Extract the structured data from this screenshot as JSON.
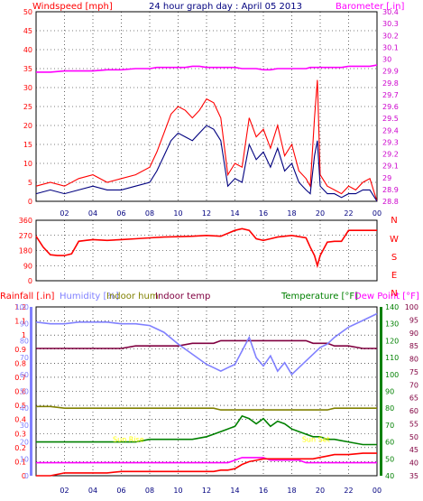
{
  "header": {
    "windspeed_label": "Windspeed [mph]",
    "title": "24 hour graph day : April 05 2013",
    "barometer_label": "Barometer [.in]"
  },
  "colors": {
    "red": "#ff0000",
    "navy": "#00007f",
    "magenta": "#ff00ff",
    "purple": "#cc00cc",
    "humidity": "#8080ff",
    "olive": "#808000",
    "maroon": "#800040",
    "green": "#008000",
    "yellow": "#ffff00"
  },
  "time_ticks": [
    "02",
    "04",
    "06",
    "08",
    "10",
    "12",
    "14",
    "16",
    "18",
    "20",
    "22",
    "00"
  ],
  "panel1": {
    "left_ticks": [
      "0",
      "5",
      "10",
      "15",
      "20",
      "25",
      "30",
      "35",
      "40",
      "45",
      "50"
    ],
    "right_ticks": [
      "28.8",
      "28.9",
      "29",
      "29.1",
      "29.2",
      "29.3",
      "29.4",
      "29.5",
      "29.6",
      "29.7",
      "29.8",
      "29.9",
      "30",
      "30.1",
      "30.2",
      "30.3",
      "30.4"
    ]
  },
  "panel2": {
    "left_ticks": [
      "0",
      "90",
      "180",
      "270",
      "360"
    ],
    "compass": [
      "N",
      "W",
      "S",
      "E",
      "N"
    ]
  },
  "panel3": {
    "rainfall_label": "Rainfall [.in]",
    "humidity_label": "Humidity [%]",
    "indoor_hum_label": "Indoor hum",
    "indoor_temp_label": "Indoor temp",
    "temperature_label": "Temperature [°F]",
    "dewpoint_label": "Dew Point [°F]",
    "rain_ticks": [
      "0",
      "0.1",
      "0.2",
      "0.3",
      "0.4",
      "0.5",
      "0.6",
      "0.7",
      "0.8",
      "0.9",
      "1",
      "1.1",
      "1.2"
    ],
    "hum_ticks": [
      "0",
      "10",
      "20",
      "30",
      "40",
      "50",
      "60",
      "70",
      "80",
      "90",
      "100"
    ],
    "temp_ticks": [
      "40",
      "50",
      "60",
      "70",
      "80",
      "90",
      "100",
      "110",
      "120",
      "130",
      "140"
    ],
    "dew_ticks": [
      "35",
      "40",
      "45",
      "50",
      "55",
      "60",
      "65",
      "70",
      "75",
      "80",
      "85",
      "90",
      "95",
      "100"
    ],
    "annotations": [
      {
        "text": "Sun Rise",
        "hour": 6.5,
        "rain": 0.24
      },
      {
        "text": "Sun Set",
        "hour": 19.7,
        "rain": 0.24
      }
    ]
  },
  "chart_data": [
    {
      "type": "line",
      "ylabel": "Windspeed [mph]",
      "y2label": "Barometer [.in]",
      "ylim": [
        0,
        50
      ],
      "y2lim": [
        28.8,
        30.4
      ],
      "x_hours": [
        0,
        1,
        2,
        3,
        4,
        5,
        6,
        7,
        8,
        8.5,
        9,
        9.5,
        10,
        10.5,
        11,
        11.5,
        12,
        12.5,
        13,
        13.5,
        14,
        14.5,
        15,
        15.5,
        16,
        16.5,
        17,
        17.5,
        18,
        18.5,
        19,
        19.3,
        19.6,
        19.8,
        20,
        20.5,
        21,
        21.5,
        22,
        22.5,
        23,
        23.5,
        24
      ],
      "series": [
        {
          "name": "wind gust",
          "values": [
            4,
            5,
            4,
            6,
            7,
            5,
            6,
            7,
            9,
            13,
            18,
            23,
            25,
            24,
            22,
            24,
            27,
            26,
            22,
            7,
            10,
            9,
            22,
            17,
            19,
            14,
            20,
            12,
            15,
            8,
            6,
            4,
            22,
            32,
            7,
            4,
            3,
            2,
            4,
            3,
            5,
            6,
            0
          ]
        },
        {
          "name": "wind average",
          "values": [
            2,
            3,
            2,
            3,
            4,
            3,
            3,
            4,
            5,
            8,
            12,
            16,
            18,
            17,
            16,
            18,
            20,
            19,
            16,
            4,
            6,
            5,
            15,
            11,
            13,
            9,
            14,
            8,
            10,
            5,
            3,
            2,
            12,
            16,
            4,
            2,
            2,
            1,
            2,
            2,
            3,
            3,
            0
          ]
        },
        {
          "name": "barometer",
          "values": [
            29.89,
            29.89,
            29.9,
            29.9,
            29.9,
            29.91,
            29.91,
            29.92,
            29.92,
            29.93,
            29.93,
            29.93,
            29.93,
            29.93,
            29.94,
            29.94,
            29.93,
            29.93,
            29.93,
            29.93,
            29.93,
            29.92,
            29.92,
            29.92,
            29.91,
            29.91,
            29.92,
            29.92,
            29.92,
            29.92,
            29.92,
            29.93,
            29.93,
            29.93,
            29.93,
            29.93,
            29.93,
            29.93,
            29.94,
            29.94,
            29.94,
            29.94,
            29.95
          ]
        }
      ]
    },
    {
      "type": "line",
      "ylabel": "",
      "ylim": [
        0,
        360
      ],
      "x_hours": [
        0,
        0.5,
        1,
        1.5,
        2,
        2.5,
        3,
        3.5,
        4,
        5,
        6,
        7,
        8,
        9,
        10,
        11,
        12,
        13,
        14,
        14.5,
        15,
        15.5,
        16,
        16.5,
        17,
        18,
        19,
        19.3,
        19.6,
        19.8,
        20,
        20.5,
        21,
        21.5,
        22,
        22.5,
        23,
        24
      ],
      "series": [
        {
          "name": "wind direction",
          "values": [
            265,
            200,
            155,
            150,
            150,
            160,
            235,
            240,
            245,
            240,
            245,
            250,
            255,
            260,
            262,
            265,
            270,
            265,
            300,
            310,
            300,
            250,
            240,
            250,
            260,
            270,
            255,
            200,
            150,
            90,
            150,
            230,
            235,
            235,
            300,
            300,
            300,
            300
          ]
        }
      ]
    },
    {
      "type": "line",
      "ylabel": "Rainfall [.in]",
      "y2label": "Temperature [°F]",
      "ylim": [
        0,
        1.2
      ],
      "y2lim": [
        35,
        100
      ],
      "x_hours": [
        0,
        1,
        2,
        3,
        4,
        5,
        6,
        7,
        8,
        9,
        10,
        11,
        12,
        12.5,
        13,
        13.5,
        14,
        14.5,
        15,
        15.5,
        16,
        16.5,
        17,
        17.5,
        18,
        18.5,
        19,
        19.5,
        20,
        20.5,
        21,
        22,
        23,
        24
      ],
      "series": [
        {
          "name": "Rainfall",
          "values": [
            0,
            0,
            0.02,
            0.02,
            0.02,
            0.02,
            0.03,
            0.03,
            0.03,
            0.03,
            0.03,
            0.03,
            0.03,
            0.03,
            0.04,
            0.04,
            0.05,
            0.08,
            0.1,
            0.11,
            0.12,
            0.12,
            0.12,
            0.12,
            0.12,
            0.12,
            0.12,
            0.12,
            0.13,
            0.14,
            0.15,
            0.15,
            0.16,
            0.16
          ]
        },
        {
          "name": "Humidity",
          "values": [
            91,
            90,
            90,
            91,
            91,
            91,
            90,
            90,
            89,
            85,
            78,
            72,
            66,
            64,
            62,
            64,
            66,
            74,
            82,
            70,
            65,
            71,
            62,
            67,
            60,
            64,
            68,
            72,
            76,
            78,
            82,
            88,
            92,
            96
          ]
        },
        {
          "name": "Indoor hum",
          "values": [
            41,
            41,
            40,
            40,
            40,
            40,
            40,
            40,
            40,
            40,
            40,
            40,
            40,
            40,
            39,
            39,
            39,
            39,
            39,
            39,
            39,
            39,
            39,
            39,
            39,
            39,
            39,
            39,
            39,
            39,
            40,
            40,
            40,
            40
          ]
        },
        {
          "name": "Indoor temp",
          "values": [
            84,
            84,
            84,
            84,
            84,
            84,
            84,
            85,
            85,
            85,
            85,
            86,
            86,
            86,
            87,
            87,
            87,
            87,
            87,
            87,
            87,
            87,
            87,
            87,
            87,
            87,
            87,
            86,
            86,
            86,
            85,
            85,
            84,
            84
          ]
        },
        {
          "name": "Temperature",
          "values": [
            48,
            48,
            48,
            48,
            48,
            48,
            48,
            48,
            49,
            49,
            49,
            49,
            50,
            51,
            52,
            53,
            54,
            58,
            57,
            55,
            57,
            54,
            56,
            55,
            53,
            52,
            51,
            50,
            50,
            49,
            49,
            48,
            47,
            47
          ]
        },
        {
          "name": "Dew Point",
          "values": [
            40,
            40,
            40,
            40,
            40,
            40,
            40,
            40,
            40,
            40,
            40,
            40,
            40,
            40,
            40,
            40,
            41,
            42,
            42,
            42,
            42,
            41,
            41,
            41,
            41,
            41,
            40,
            40,
            40,
            40,
            40,
            40,
            40,
            40
          ]
        }
      ]
    }
  ]
}
